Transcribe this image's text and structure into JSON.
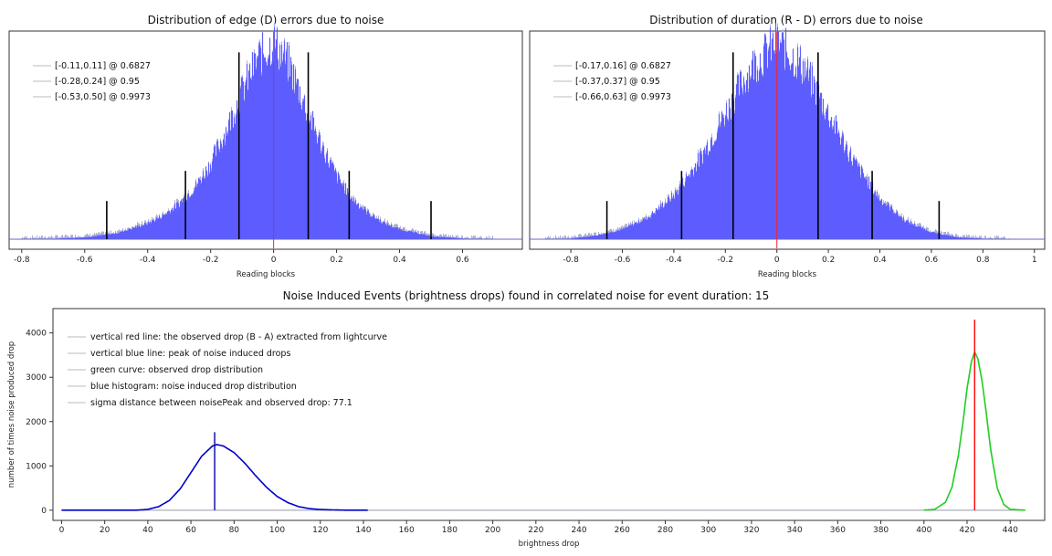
{
  "chart_data": [
    {
      "id": "edge",
      "type": "bar",
      "title": "Distribution of edge (D) errors due to noise",
      "xlabel": "Reading blocks",
      "ylabel": "",
      "xlim": [
        -0.84,
        0.79
      ],
      "x_ticks": [
        -0.8,
        -0.6,
        -0.4,
        -0.2,
        0,
        0.2,
        0.4,
        0.6
      ],
      "x_tick_labels": [
        "-0.8",
        "-0.6",
        "-0.4",
        "-0.2",
        "0",
        "0.2",
        "0.4",
        "0.6"
      ],
      "histogram": {
        "color": "#5555ff",
        "x": [
          -0.8,
          -0.7,
          -0.6,
          -0.5,
          -0.4,
          -0.35,
          -0.3,
          -0.25,
          -0.2,
          -0.15,
          -0.1,
          -0.05,
          0.0,
          0.05,
          0.1,
          0.15,
          0.2,
          0.25,
          0.3,
          0.35,
          0.4,
          0.5,
          0.6,
          0.7
        ],
        "values": [
          0.0,
          0.003,
          0.01,
          0.03,
          0.08,
          0.12,
          0.18,
          0.26,
          0.38,
          0.55,
          0.74,
          0.9,
          0.98,
          0.86,
          0.66,
          0.47,
          0.31,
          0.2,
          0.13,
          0.08,
          0.05,
          0.015,
          0.004,
          0.0
        ]
      },
      "center_line": {
        "x": 0,
        "color": "#ff2222"
      },
      "confidence_lines": [
        {
          "low": -0.11,
          "high": 0.11,
          "height": 0.93
        },
        {
          "low": -0.28,
          "high": 0.24,
          "height": 0.34
        },
        {
          "low": -0.53,
          "high": 0.5,
          "height": 0.19
        }
      ],
      "legend": [
        "[-0.11,0.11] @ 0.6827",
        "[-0.28,0.24] @ 0.95",
        "[-0.53,0.50] @ 0.9973"
      ],
      "legend_position": "top-left"
    },
    {
      "id": "duration",
      "type": "bar",
      "title": "Distribution of duration (R - D) errors due to noise",
      "xlabel": "Reading blocks",
      "ylabel": "",
      "xlim": [
        -0.96,
        1.04
      ],
      "x_ticks": [
        -0.8,
        -0.6,
        -0.4,
        -0.2,
        0,
        0.2,
        0.4,
        0.6,
        0.8,
        1
      ],
      "x_tick_labels": [
        "-0.8",
        "-0.6",
        "-0.4",
        "-0.2",
        "0",
        "0.2",
        "0.4",
        "0.6",
        "0.8",
        "1"
      ],
      "histogram": {
        "color": "#5555ff",
        "x": [
          -0.9,
          -0.8,
          -0.7,
          -0.6,
          -0.5,
          -0.4,
          -0.3,
          -0.2,
          -0.1,
          0.0,
          0.1,
          0.2,
          0.3,
          0.4,
          0.5,
          0.6,
          0.7,
          0.8,
          0.9
        ],
        "values": [
          0.0,
          0.004,
          0.02,
          0.05,
          0.11,
          0.22,
          0.4,
          0.63,
          0.86,
          0.98,
          0.86,
          0.62,
          0.38,
          0.2,
          0.09,
          0.035,
          0.01,
          0.003,
          0.0
        ]
      },
      "center_line": {
        "x": 0,
        "color": "#ff2222"
      },
      "confidence_lines": [
        {
          "low": -0.17,
          "high": 0.16,
          "height": 0.93
        },
        {
          "low": -0.37,
          "high": 0.37,
          "height": 0.34
        },
        {
          "low": -0.66,
          "high": 0.63,
          "height": 0.19
        }
      ],
      "legend": [
        "[-0.17,0.16] @ 0.6827",
        "[-0.37,0.37] @ 0.95",
        "[-0.66,0.63] @ 0.9973"
      ],
      "legend_position": "top-left"
    },
    {
      "id": "noise",
      "type": "line",
      "title": "Noise Induced Events (brightness drops) found in correlated noise for event duration: 15",
      "xlabel": "brightness drop",
      "ylabel": "number of times noise produced drop",
      "xlim": [
        -4,
        456
      ],
      "ylim": [
        -230,
        4550
      ],
      "x_ticks": [
        0,
        20,
        40,
        60,
        80,
        100,
        120,
        140,
        160,
        180,
        200,
        220,
        240,
        260,
        280,
        300,
        320,
        340,
        360,
        380,
        400,
        420,
        440
      ],
      "x_tick_labels": [
        "0",
        "20",
        "40",
        "60",
        "80",
        "100",
        "120",
        "140",
        "160",
        "180",
        "200",
        "220",
        "240",
        "260",
        "280",
        "300",
        "320",
        "340",
        "360",
        "380",
        "400",
        "420",
        "440"
      ],
      "y_ticks": [
        0,
        1000,
        2000,
        3000,
        4000
      ],
      "y_tick_labels": [
        "0",
        "1000",
        "2000",
        "3000",
        "4000"
      ],
      "series": [
        {
          "color": "#0000cc",
          "x": [
            0,
            35,
            40,
            45,
            50,
            55,
            60,
            65,
            70,
            72,
            75,
            80,
            85,
            90,
            95,
            100,
            105,
            110,
            115,
            120,
            130,
            142
          ],
          "y": [
            0,
            0,
            20,
            80,
            220,
            480,
            850,
            1220,
            1450,
            1480,
            1450,
            1300,
            1060,
            780,
            520,
            310,
            170,
            80,
            35,
            15,
            2,
            0
          ]
        },
        {
          "color": "#22cc22",
          "x": [
            400,
            405,
            410,
            413,
            416,
            418,
            420,
            422,
            423.5,
            425,
            427,
            429,
            431,
            434,
            437,
            440,
            447
          ],
          "y": [
            0,
            20,
            180,
            520,
            1250,
            1950,
            2750,
            3350,
            3570,
            3420,
            2900,
            2150,
            1350,
            500,
            130,
            20,
            0
          ]
        }
      ],
      "vertical_lines": [
        {
          "x": 71,
          "top": 1760,
          "color": "#0000aa"
        },
        {
          "x": 423.5,
          "top": 4300,
          "color": "#ff0000"
        }
      ],
      "legend": [
        "vertical red line: the observed drop (B - A) extracted from lightcurve",
        "vertical blue line: peak of noise induced drops",
        "green curve: observed drop distribution",
        "blue histogram: noise induced drop distribution",
        "sigma distance between noisePeak and observed drop: 77.1"
      ],
      "legend_position": "top-left"
    }
  ]
}
